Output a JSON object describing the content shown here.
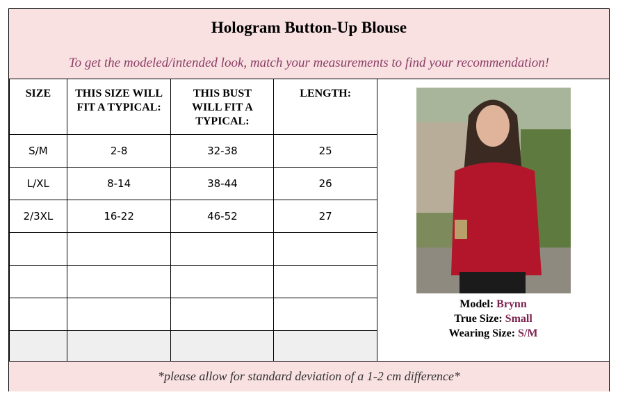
{
  "title": "Hologram Button-Up Blouse",
  "subtitle": "To get the modeled/intended look, match your measurements to find your recommendation!",
  "table": {
    "headers": [
      "SIZE",
      "THIS SIZE WILL FIT A TYPICAL:",
      "THIS BUST WILL FIT A TYPICAL:",
      "LENGTH:"
    ],
    "rows": [
      [
        "S/M",
        "2-8",
        "32-38",
        "25"
      ],
      [
        "L/XL",
        "8-14",
        "38-44",
        "26"
      ],
      [
        "2/3XL",
        "16-22",
        "46-52",
        "27"
      ],
      [
        "",
        "",
        "",
        ""
      ],
      [
        "",
        "",
        "",
        ""
      ],
      [
        "",
        "",
        "",
        ""
      ],
      [
        "",
        "",
        "",
        ""
      ]
    ]
  },
  "model": {
    "model_label": "Model:",
    "model_value": "Brynn",
    "true_label": "True Size:",
    "true_value": "Small",
    "wearing_label": "Wearing Size:",
    "wearing_value": "S/M"
  },
  "footer": "*please allow for standard deviation of a 1-2 cm difference*"
}
